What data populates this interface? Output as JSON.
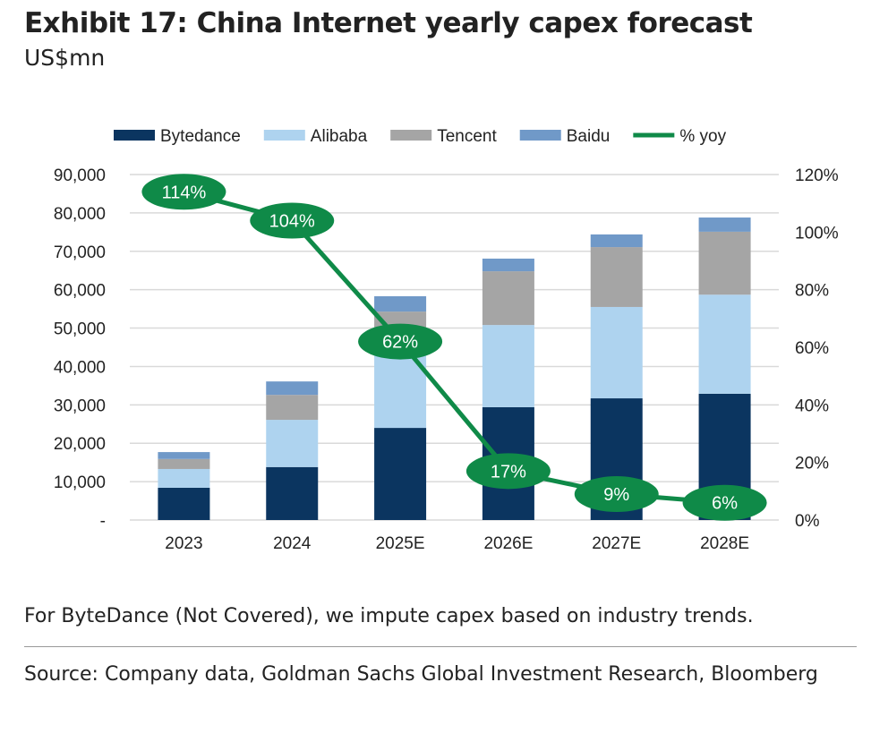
{
  "title": "Exhibit 17: China Internet yearly capex forecast",
  "subtitle": "US$mn",
  "note": "For ByteDance (Not Covered), we impute capex based on industry trends.",
  "source": "Source: Company data, Goldman Sachs Global Investment Research, Bloomberg",
  "chart_data": {
    "type": "bar",
    "stacked": true,
    "categories": [
      "2023",
      "2024",
      "2025E",
      "2026E",
      "2027E",
      "2028E"
    ],
    "series": [
      {
        "name": "Bytedance",
        "color": "#0b3560",
        "values": [
          8400,
          13800,
          24000,
          29400,
          31700,
          32900
        ]
      },
      {
        "name": "Alibaba",
        "color": "#aed3ef",
        "values": [
          4900,
          12300,
          26000,
          21400,
          23800,
          25800
        ]
      },
      {
        "name": "Tencent",
        "color": "#a5a5a5",
        "values": [
          2600,
          6500,
          4300,
          14000,
          15600,
          16400
        ]
      },
      {
        "name": "Baidu",
        "color": "#7099c8",
        "values": [
          1800,
          3500,
          4000,
          3300,
          3300,
          3700
        ]
      }
    ],
    "line": {
      "name": "% yoy",
      "color": "#0f8a48",
      "values": [
        114,
        104,
        62,
        17,
        9,
        6
      ],
      "labels": [
        "114%",
        "104%",
        "62%",
        "17%",
        "9%",
        "6%"
      ]
    },
    "ylim": [
      0,
      90000
    ],
    "yticks": [
      "-",
      "10,000",
      "20,000",
      "30,000",
      "40,000",
      "50,000",
      "60,000",
      "70,000",
      "80,000",
      "90,000"
    ],
    "y2lim": [
      0,
      120
    ],
    "y2ticks": [
      "0%",
      "20%",
      "40%",
      "60%",
      "80%",
      "100%",
      "120%"
    ],
    "legend": "top",
    "grid": true
  }
}
